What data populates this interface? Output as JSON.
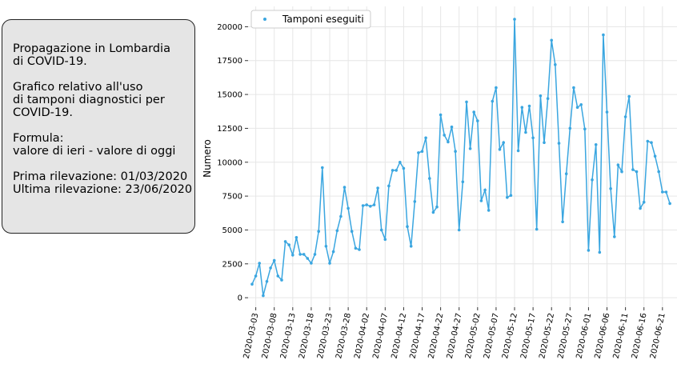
{
  "info_box": {
    "lines": [
      "Propagazione in Lombardia",
      "di COVID-19.",
      "",
      "Grafico relativo all'uso",
      "di tamponi diagnostici per",
      "COVID-19.",
      "",
      "Formula:",
      "valore di ieri - valore di oggi",
      "",
      "Prima rilevazione: 01/03/2020",
      "Ultima rilevazione: 23/06/2020"
    ]
  },
  "chart_data": {
    "type": "line",
    "ylabel": "Numero",
    "xlabel": "",
    "ylim": [
      -700,
      21500
    ],
    "yticks": [
      0,
      2500,
      5000,
      7500,
      10000,
      12500,
      15000,
      17500,
      20000
    ],
    "xticks": [
      "2020-03-03",
      "2020-03-08",
      "2020-03-13",
      "2020-03-18",
      "2020-03-23",
      "2020-03-28",
      "2020-04-02",
      "2020-04-07",
      "2020-04-12",
      "2020-04-17",
      "2020-04-22",
      "2020-04-27",
      "2020-05-02",
      "2020-05-07",
      "2020-05-12",
      "2020-05-17",
      "2020-05-22",
      "2020-05-27",
      "2020-06-01",
      "2020-06-06",
      "2020-06-11",
      "2020-06-16",
      "2020-06-21"
    ],
    "x_start": "2020-03-02",
    "legend": {
      "label": "Tamponi eseguiti",
      "placement": "top-left"
    },
    "grid": true,
    "color": "#3aa6e0",
    "series": [
      {
        "name": "Tamponi eseguiti",
        "values": [
          1000,
          1600,
          2550,
          150,
          1200,
          2200,
          2750,
          1600,
          1300,
          4150,
          3900,
          3150,
          4450,
          3200,
          3200,
          2900,
          2550,
          3200,
          4900,
          9600,
          3800,
          2550,
          3400,
          4950,
          6000,
          8150,
          6600,
          4900,
          3650,
          3550,
          6800,
          6850,
          6750,
          6850,
          8100,
          5000,
          4300,
          8250,
          9400,
          9400,
          10000,
          9550,
          5250,
          3800,
          7100,
          10700,
          10800,
          11800,
          8800,
          6300,
          6700,
          13500,
          12000,
          11500,
          12600,
          10800,
          5000,
          8550,
          14450,
          11000,
          13700,
          13050,
          7150,
          7950,
          6450,
          14500,
          15500,
          10950,
          11450,
          7400,
          7550,
          20550,
          10850,
          14050,
          12200,
          14150,
          11800,
          5050,
          14900,
          11450,
          14700,
          19000,
          17200,
          11400,
          5600,
          9150,
          12500,
          15500,
          14050,
          14250,
          12450,
          3500,
          8700,
          11300,
          3350,
          19400,
          13700,
          8050,
          4500,
          9800,
          9300,
          13350,
          14850,
          9450,
          9300,
          6600,
          7050,
          11550,
          11450,
          10450,
          9300,
          7800,
          7800,
          6950
        ]
      }
    ]
  }
}
